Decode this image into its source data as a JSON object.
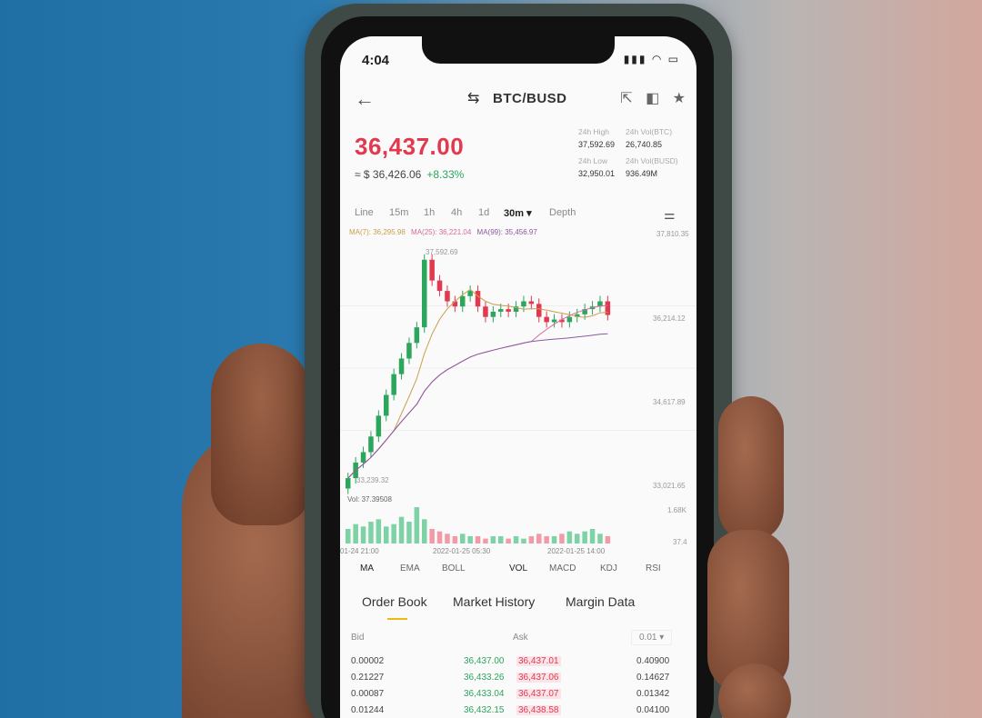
{
  "status": {
    "time": "4:04",
    "icons": "▮▮▮ ◠ ▭"
  },
  "header": {
    "back_icon": "←",
    "pair_icon": "⇆",
    "pair": "BTC/BUSD",
    "icons": [
      "⇱",
      "◧",
      "★"
    ]
  },
  "ticker": {
    "price": "36,437.00",
    "equiv": "≈ $ 36,426.06",
    "change": "+8.33%",
    "high_label": "24h High",
    "high": "37,592.69",
    "vol_btc_label": "24h Vol(BTC)",
    "vol_btc": "26,740.85",
    "low_label": "24h Low",
    "low": "32,950.01",
    "vol_busd_label": "24h Vol(BUSD)",
    "vol_busd": "936.49M"
  },
  "intervals": [
    "Line",
    "15m",
    "1h",
    "4h",
    "1d",
    "30m ▾",
    "Depth"
  ],
  "ma": {
    "ma7": "MA(7): 36,295.98",
    "ma25": "MA(25): 36,221.04",
    "ma99": "MA(99): 35,456.97"
  },
  "chart_labels": {
    "y1": "37,810.35",
    "y2": "36,214.12",
    "y3": "34,617.89",
    "y4": "33,021.65",
    "peak": "37,592.69",
    "trough": "33,239.32",
    "vol": "Vol: 37.39508",
    "vol_max": "1.68K",
    "vol_min": "37.4",
    "t1": "01-24 21:00",
    "t2": "2022-01-25 05:30",
    "t3": "2022-01-25 14:00"
  },
  "chart_data": {
    "type": "bar",
    "title": "",
    "candles_close": [
      33300,
      33600,
      33800,
      34100,
      34500,
      34900,
      35300,
      35600,
      35900,
      36200,
      37500,
      37100,
      36900,
      36700,
      36600,
      36800,
      36900,
      36600,
      36400,
      36500,
      36550,
      36500,
      36600,
      36700,
      36650,
      36400,
      36300,
      36350,
      36300,
      36400,
      36450,
      36550,
      36600,
      36700,
      36437
    ],
    "volumes": [
      0.6,
      0.8,
      0.7,
      0.9,
      1.0,
      0.7,
      0.8,
      1.1,
      0.9,
      1.5,
      1.0,
      0.6,
      0.5,
      0.4,
      0.3,
      0.4,
      0.3,
      0.3,
      0.2,
      0.3,
      0.3,
      0.2,
      0.3,
      0.2,
      0.3,
      0.4,
      0.3,
      0.3,
      0.4,
      0.5,
      0.4,
      0.5,
      0.6,
      0.4,
      0.3
    ],
    "ylim": [
      33021.65,
      37810.35
    ]
  },
  "indicators": [
    "MA",
    "EMA",
    "BOLL",
    "VOL",
    "MACD",
    "KDJ",
    "RSI"
  ],
  "tabs": [
    "Order Book",
    "Market History",
    "Margin Data"
  ],
  "orderbook": {
    "bid_label": "Bid",
    "ask_label": "Ask",
    "precision": "0.01 ▾",
    "rows": [
      {
        "bid_qty": "0.00002",
        "bid_price": "36,437.00",
        "ask_price": "36,437.01",
        "ask_qty": "0.40900"
      },
      {
        "bid_qty": "0.21227",
        "bid_price": "36,433.26",
        "ask_price": "36,437.06",
        "ask_qty": "0.14627"
      },
      {
        "bid_qty": "0.00087",
        "bid_price": "36,433.04",
        "ask_price": "36,437.07",
        "ask_qty": "0.01342"
      },
      {
        "bid_qty": "0.01244",
        "bid_price": "36,432.15",
        "ask_price": "36,438.58",
        "ask_qty": "0.04100"
      }
    ]
  }
}
